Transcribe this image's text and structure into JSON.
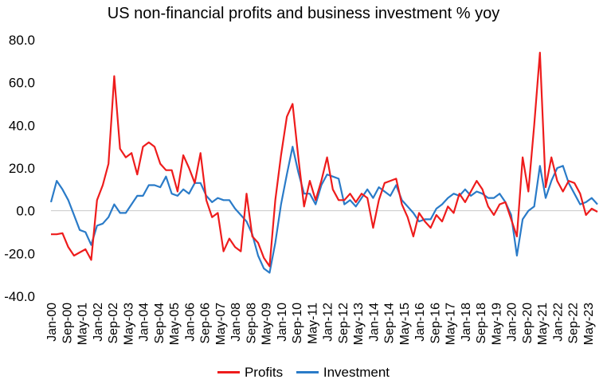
{
  "chart_data": {
    "type": "line",
    "title": "US non-financial profits and business investment % yoy",
    "xlabel": "",
    "ylabel": "",
    "ylim": [
      -40,
      80
    ],
    "yticks": [
      80.0,
      60.0,
      40.0,
      20.0,
      0.0,
      -20.0,
      -40.0
    ],
    "ytick_labels": [
      "80.0",
      "60.0",
      "40.0",
      "20.0",
      "0.0",
      "-20.0",
      "-40.0"
    ],
    "x_start": {
      "year": 2000,
      "month": 1
    },
    "x_step_months": 3,
    "xtick_labels": [
      "Jan-00",
      "Sep-00",
      "May-01",
      "Jan-02",
      "Sep-02",
      "May-03",
      "Jan-04",
      "Sep-04",
      "May-05",
      "Jan-06",
      "Sep-06",
      "May-07",
      "Jan-08",
      "Sep-08",
      "May-09",
      "Jan-10",
      "Sep-10",
      "May-11",
      "Jan-12",
      "Sep-12",
      "May-13",
      "Jan-14",
      "Sep-14",
      "May-15",
      "Jan-16",
      "Sep-16",
      "May-17",
      "Jan-18",
      "Sep-18",
      "May-19",
      "Jan-20",
      "Sep-20",
      "May-21",
      "Jan-22",
      "Sep-22",
      "May-23"
    ],
    "series": [
      {
        "name": "Profits",
        "color": "#ee1c1c",
        "values": [
          -11,
          -11,
          -10.5,
          -17,
          -21,
          -19.5,
          -18,
          -23,
          5,
          12,
          22,
          63,
          29,
          25,
          27,
          17,
          30,
          32,
          30,
          22,
          19,
          19,
          9,
          26,
          20,
          13,
          27,
          5,
          -3,
          -1,
          -19,
          -13,
          -17,
          -19,
          8,
          -12,
          -15,
          -22,
          -26,
          5,
          26,
          44,
          50,
          25,
          2,
          14,
          5,
          14,
          25,
          10,
          5,
          5,
          8,
          4,
          8,
          6,
          -8,
          5,
          13,
          14,
          15,
          3,
          -3,
          -12,
          -1,
          -5,
          -8,
          -2,
          -5,
          2,
          -1,
          8,
          4,
          9,
          14,
          10,
          2,
          -2,
          3,
          4,
          -4,
          -12,
          25,
          9,
          40,
          74,
          11,
          25,
          14,
          9,
          14,
          13,
          8,
          -2,
          1,
          -0.5
        ],
        "legend_label": "Profits"
      },
      {
        "name": "Investment",
        "color": "#2a7bc8",
        "values": [
          4,
          14,
          10,
          5,
          -2,
          -9,
          -10,
          -16,
          -7,
          -6,
          -3,
          3,
          -1,
          -1,
          3,
          7,
          7,
          12,
          12,
          11,
          16,
          8,
          7,
          10,
          8,
          13,
          13,
          7,
          4,
          6,
          5,
          5,
          1,
          -2,
          -5,
          -11,
          -21,
          -27,
          -29,
          -15,
          3,
          17,
          30,
          18,
          8,
          8,
          3,
          12,
          17,
          16,
          15,
          3,
          5,
          2,
          6,
          10,
          6,
          11,
          9,
          7,
          12,
          5,
          2,
          -1,
          -5,
          -4,
          -4,
          1,
          3,
          6,
          8,
          7,
          10,
          7,
          9,
          8,
          6,
          6,
          8,
          4,
          -2,
          -21,
          -4,
          0,
          2,
          21,
          6,
          14,
          20,
          21,
          13,
          8,
          3,
          4,
          6,
          3
        ],
        "legend_label": "Investment"
      }
    ]
  }
}
